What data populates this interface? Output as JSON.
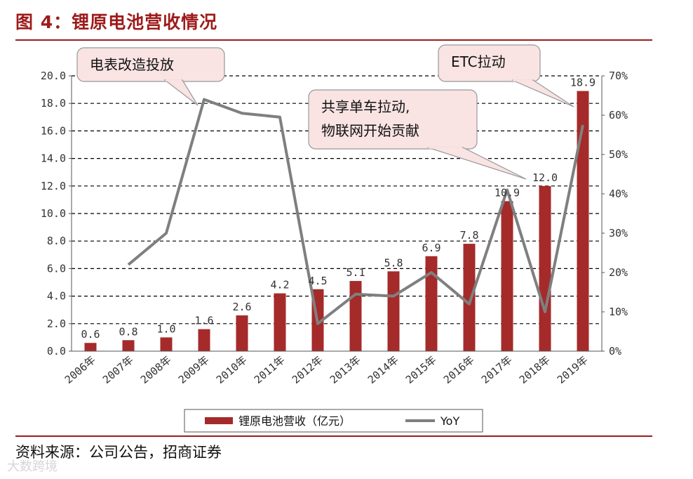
{
  "figure": {
    "title": "图 4：锂原电池营收情况",
    "source": "资料来源：公司公告，招商证券",
    "watermark": "大数跨境"
  },
  "chart_data": {
    "type": "bar",
    "categories": [
      "2006年",
      "2007年",
      "2008年",
      "2009年",
      "2010年",
      "2011年",
      "2012年",
      "2013年",
      "2014年",
      "2015年",
      "2016年",
      "2017年",
      "2018年",
      "2019年"
    ],
    "series": [
      {
        "name": "锂原电池营收（亿元）",
        "type": "bar",
        "axis": "left",
        "color": "#a52a2a",
        "values": [
          0.6,
          0.8,
          1.0,
          1.6,
          2.6,
          4.2,
          4.5,
          5.1,
          5.8,
          6.9,
          7.8,
          10.9,
          12.0,
          18.9
        ],
        "labels": [
          "0.6",
          "0.8",
          "1.0",
          "1.6",
          "2.6",
          "4.2",
          "4.5",
          "5.1",
          "5.8",
          "6.9",
          "7.8",
          "10.9",
          "12.0",
          "18.9"
        ]
      },
      {
        "name": "YoY",
        "type": "line",
        "axis": "right",
        "color": "#7f7f7f",
        "values": [
          null,
          22,
          30,
          64,
          60.5,
          59.5,
          7,
          14.5,
          14,
          20,
          12,
          41,
          10,
          57.5
        ]
      }
    ],
    "y_left": {
      "ylim": [
        0,
        20
      ],
      "ticks": [
        "0.0",
        "2.0",
        "4.0",
        "6.0",
        "8.0",
        "10.0",
        "12.0",
        "14.0",
        "16.0",
        "18.0",
        "20.0"
      ]
    },
    "y_right": {
      "ylim": [
        0,
        70
      ],
      "ticks": [
        "0%",
        "10%",
        "20%",
        "30%",
        "40%",
        "50%",
        "60%",
        "70%"
      ]
    },
    "grid": "horizontal-dashed",
    "legend_position": "bottom",
    "annotations": [
      {
        "text": [
          "电表改造投放"
        ],
        "target_year": "2009年"
      },
      {
        "text": [
          "共享单车拉动,",
          "物联网开始贡献"
        ],
        "target_year": "2017年"
      },
      {
        "text": [
          "ETC拉动"
        ],
        "target_year": "2019年"
      }
    ]
  }
}
